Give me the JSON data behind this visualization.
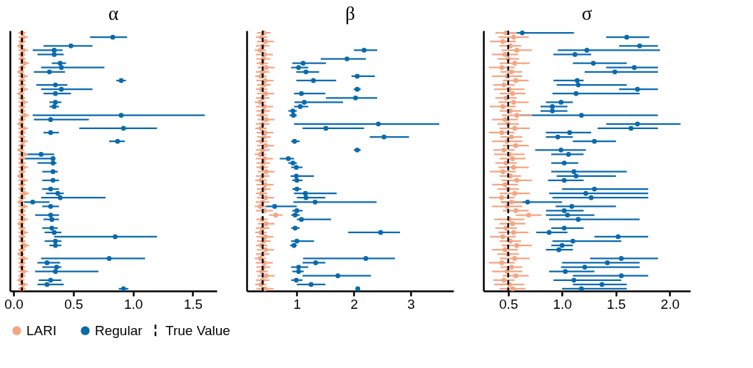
{
  "chart_data": [
    {
      "type": "scatter",
      "title": "α",
      "orientation": "horizontal",
      "tick_labels": "x",
      "legend": "bottom",
      "grid": false,
      "categories": [
        null,
        null,
        null,
        null,
        null,
        null,
        null,
        null,
        null,
        null,
        null,
        null,
        null,
        null,
        null,
        null,
        null,
        null,
        null,
        null,
        null,
        null,
        null,
        null,
        null,
        null,
        null,
        null,
        null,
        null,
        null,
        null,
        null,
        null,
        null,
        null,
        null,
        null,
        null,
        null,
        null,
        null,
        null,
        null,
        null,
        null,
        null,
        null,
        null,
        null,
        null,
        null,
        null,
        null,
        null,
        null,
        null,
        null,
        null,
        null
      ],
      "xlim": [
        -0.03,
        1.7
      ],
      "xticks": [
        {
          "value": 0,
          "label": "0.0"
        },
        0.5,
        {
          "value": 1,
          "label": "1.0"
        },
        1.5
      ],
      "series": [
        {
          "name": "LARI",
          "color": "#f4a582",
          "values": [
            0.07,
            0.08,
            0.07,
            0.06,
            0.08,
            0.07,
            0.07,
            0.09,
            0.07,
            0.06,
            0.08,
            0.07,
            0.07,
            0.08,
            0.06,
            0.07,
            0.08,
            0.07,
            0.07,
            0.09,
            0.07,
            0.06,
            0.08,
            0.07,
            0.07,
            0.08,
            0.07,
            0.06,
            0.08,
            0.07,
            0.07,
            0.08,
            0.07,
            0.06,
            0.08,
            0.07,
            0.07,
            0.09,
            0.07,
            0.06,
            0.08,
            0.07,
            0.07,
            0.08,
            0.06,
            0.07,
            0.08,
            0.07,
            0.07,
            0.09,
            0.07,
            0.06,
            0.08,
            0.07,
            0.07,
            0.08,
            0.07,
            0.06,
            0.08,
            0.07
          ],
          "errors": [
            0.03,
            0.04,
            0.03,
            0.03,
            0.04,
            0.03,
            0.03,
            0.04,
            0.03,
            0.03,
            0.04,
            0.03,
            0.03,
            0.04,
            0.03,
            0.03,
            0.04,
            0.03,
            0.03,
            0.04,
            0.03,
            0.03,
            0.04,
            0.03,
            0.03,
            0.04,
            0.03,
            0.03,
            0.04,
            0.03,
            0.03,
            0.04,
            0.03,
            0.03,
            0.04,
            0.03,
            0.03,
            0.04,
            0.03,
            0.03,
            0.04,
            0.03,
            0.03,
            0.04,
            0.03,
            0.03,
            0.04,
            0.03,
            0.03,
            0.04,
            0.03,
            0.03,
            0.04,
            0.03,
            0.03,
            0.04,
            0.03,
            0.03,
            0.04,
            0.03
          ]
        },
        {
          "name": "Regular",
          "color": "#0a6aad",
          "values": [
            null,
            0.83,
            null,
            0.48,
            0.34,
            0.34,
            null,
            0.39,
            0.4,
            0.3,
            null,
            0.9,
            0.35,
            0.4,
            0.35,
            null,
            0.35,
            0.34,
            null,
            0.9,
            0.31,
            null,
            0.92,
            0.31,
            null,
            0.87,
            null,
            null,
            0.23,
            0.33,
            0.33,
            null,
            0.33,
            null,
            0.33,
            null,
            0.31,
            0.37,
            0.39,
            0.16,
            0.31,
            null,
            0.31,
            0.32,
            null,
            0.32,
            0.34,
            0.85,
            0.35,
            0.35,
            null,
            null,
            0.8,
            0.28,
            0.36,
            0.35,
            null,
            0.31,
            0.28,
            0.92
          ],
          "errors": [
            null,
            [
              0.64,
              0.95
            ],
            null,
            [
              0.25,
              0.66
            ],
            [
              0.16,
              0.41
            ],
            [
              0.2,
              0.42
            ],
            null,
            [
              0.32,
              0.44
            ],
            [
              0.23,
              0.76
            ],
            [
              0.17,
              0.43
            ],
            null,
            [
              0.86,
              0.94
            ],
            [
              0.19,
              0.45
            ],
            [
              0.23,
              0.66
            ],
            [
              0.25,
              0.48
            ],
            null,
            [
              0.3,
              0.4
            ],
            [
              0.3,
              0.38
            ],
            null,
            [
              0.16,
              1.6
            ],
            [
              0.17,
              0.63
            ],
            null,
            [
              0.55,
              1.2
            ],
            [
              0.25,
              0.38
            ],
            null,
            [
              0.8,
              0.93
            ],
            null,
            null,
            [
              0.08,
              0.34
            ],
            [
              0.08,
              0.35
            ],
            [
              0.2,
              0.36
            ],
            null,
            [
              0.24,
              0.37
            ],
            null,
            [
              0.24,
              0.38
            ],
            null,
            [
              0.24,
              0.38
            ],
            [
              0.27,
              0.42
            ],
            [
              0.23,
              0.77
            ],
            [
              0.08,
              0.3
            ],
            [
              0.24,
              0.38
            ],
            null,
            [
              0.18,
              0.38
            ],
            [
              0.25,
              0.38
            ],
            null,
            [
              0.24,
              0.37
            ],
            [
              0.26,
              0.4
            ],
            [
              0.34,
              1.2
            ],
            [
              0.26,
              0.4
            ],
            [
              0.3,
              0.4
            ],
            null,
            null,
            [
              0.23,
              1.1
            ],
            [
              0.2,
              0.39
            ],
            [
              0.24,
              0.4
            ],
            [
              0.18,
              0.71
            ],
            null,
            [
              0.21,
              0.4
            ],
            [
              0.2,
              0.42
            ],
            [
              0.88,
              0.96
            ]
          ]
        }
      ],
      "ref_lines": [
        {
          "axis": "x",
          "value": 0.07,
          "label": "True Value",
          "color": "#000000",
          "line_style": "dashed"
        }
      ]
    },
    {
      "type": "scatter",
      "title": "β",
      "orientation": "horizontal",
      "tick_labels": "x",
      "legend": "bottom",
      "grid": false,
      "categories": [
        null,
        null,
        null,
        null,
        null,
        null,
        null,
        null,
        null,
        null,
        null,
        null,
        null,
        null,
        null,
        null,
        null,
        null,
        null,
        null,
        null,
        null,
        null,
        null,
        null,
        null,
        null,
        null,
        null,
        null,
        null,
        null,
        null,
        null,
        null,
        null,
        null,
        null,
        null,
        null,
        null,
        null,
        null,
        null,
        null,
        null,
        null,
        null,
        null,
        null,
        null,
        null,
        null,
        null,
        null,
        null,
        null,
        null,
        null,
        null
      ],
      "xlim": [
        0.12,
        3.75
      ],
      "xticks": [
        1,
        2,
        3
      ],
      "series": [
        {
          "name": "LARI",
          "color": "#f4a582",
          "values": [
            0.42,
            0.38,
            0.45,
            0.4,
            0.36,
            0.43,
            0.41,
            0.39,
            0.46,
            0.4,
            0.37,
            0.44,
            0.42,
            0.38,
            0.45,
            0.4,
            0.36,
            0.43,
            0.41,
            0.39,
            0.46,
            0.4,
            0.37,
            0.44,
            0.42,
            0.38,
            0.45,
            0.4,
            0.36,
            0.43,
            0.41,
            0.39,
            0.46,
            0.4,
            0.37,
            0.44,
            0.42,
            0.38,
            0.45,
            0.4,
            0.36,
            0.43,
            0.63,
            0.39,
            0.46,
            0.4,
            0.37,
            0.44,
            0.42,
            0.38,
            0.45,
            0.4,
            0.36,
            0.43,
            0.41,
            0.39,
            0.46,
            0.4,
            0.37,
            0.44
          ],
          "errors": [
            0.12,
            0.1,
            0.15,
            0.12,
            0.1,
            0.15,
            0.12,
            0.1,
            0.15,
            0.12,
            0.1,
            0.15,
            0.12,
            0.1,
            0.15,
            0.12,
            0.1,
            0.15,
            0.12,
            0.1,
            0.15,
            0.12,
            0.1,
            0.15,
            0.12,
            0.1,
            0.15,
            0.12,
            0.1,
            0.15,
            0.12,
            0.1,
            0.15,
            0.12,
            0.1,
            0.15,
            0.12,
            0.1,
            0.15,
            0.12,
            0.1,
            0.15,
            0.12,
            0.1,
            0.15,
            0.12,
            0.1,
            0.15,
            0.12,
            0.1,
            0.15,
            0.12,
            0.1,
            0.15,
            0.12,
            0.1,
            0.15,
            0.12,
            0.1,
            0.15
          ]
        },
        {
          "name": "Regular",
          "color": "#0a6aad",
          "values": [
            null,
            null,
            null,
            null,
            2.18,
            null,
            1.88,
            1.11,
            1.03,
            1.16,
            2.06,
            1.29,
            null,
            2.06,
            1.08,
            2.03,
            1.13,
            1.06,
            0.93,
            0.94,
            null,
            2.43,
            1.51,
            null,
            2.53,
            0.96,
            null,
            2.06,
            null,
            0.85,
            0.93,
            0.99,
            null,
            0.99,
            1.0,
            null,
            1.0,
            1.15,
            1.16,
            1.32,
            0.61,
            1.0,
            0.97,
            1.08,
            null,
            0.97,
            2.47,
            null,
            1.0,
            0.95,
            null,
            null,
            2.21,
            1.33,
            1.03,
            1.03,
            1.72,
            0.99,
            1.25,
            2.07
          ],
          "errors": [
            null,
            null,
            null,
            null,
            [
              2.0,
              2.41
            ],
            null,
            [
              1.42,
              2.21
            ],
            [
              0.92,
              1.51
            ],
            [
              0.9,
              1.2
            ],
            [
              0.99,
              1.39
            ],
            [
              1.96,
              2.37
            ],
            [
              0.99,
              1.69
            ],
            null,
            [
              2.0,
              2.12
            ],
            [
              0.95,
              1.5
            ],
            [
              1.51,
              2.41
            ],
            [
              0.96,
              1.81
            ],
            [
              0.95,
              1.2
            ],
            [
              0.85,
              1.0
            ],
            [
              0.87,
              1.0
            ],
            null,
            [
              0.95,
              3.5
            ],
            [
              1.1,
              2.18
            ],
            null,
            [
              2.28,
              2.97
            ],
            [
              0.9,
              1.05
            ],
            null,
            [
              2.0,
              2.12
            ],
            null,
            [
              0.7,
              0.95
            ],
            [
              0.85,
              1.0
            ],
            [
              0.9,
              1.1
            ],
            null,
            [
              0.89,
              1.3
            ],
            [
              0.92,
              1.1
            ],
            null,
            [
              0.92,
              1.08
            ],
            [
              0.95,
              1.7
            ],
            [
              1.0,
              1.5
            ],
            [
              0.94,
              2.4
            ],
            [
              0.45,
              1.0
            ],
            [
              0.92,
              1.1
            ],
            [
              0.9,
              1.05
            ],
            [
              1.0,
              1.6
            ],
            null,
            [
              0.9,
              1.05
            ],
            [
              1.9,
              2.81
            ],
            null,
            [
              0.9,
              1.3
            ],
            [
              0.88,
              1.0
            ],
            null,
            null,
            [
              1.11,
              2.72
            ],
            [
              1.1,
              1.5
            ],
            [
              0.9,
              1.2
            ],
            [
              0.92,
              1.12
            ],
            [
              1.1,
              2.3
            ],
            [
              0.9,
              1.1
            ],
            [
              1.0,
              1.5
            ],
            [
              2.03,
              2.11
            ]
          ]
        }
      ],
      "ref_lines": [
        {
          "axis": "x",
          "value": 0.4,
          "color": "#000000",
          "line_style": "dashed"
        }
      ]
    },
    {
      "type": "scatter",
      "title": "σ",
      "orientation": "horizontal",
      "tick_labels": "x",
      "legend": "bottom",
      "grid": false,
      "categories": [
        null,
        null,
        null,
        null,
        null,
        null,
        null,
        null,
        null,
        null,
        null,
        null,
        null,
        null,
        null,
        null,
        null,
        null,
        null,
        null,
        null,
        null,
        null,
        null,
        null,
        null,
        null,
        null,
        null,
        null,
        null,
        null,
        null,
        null,
        null,
        null,
        null,
        null,
        null,
        null,
        null,
        null,
        null,
        null,
        null,
        null,
        null,
        null,
        null,
        null,
        null,
        null,
        null,
        null,
        null,
        null,
        null,
        null,
        null,
        null
      ],
      "xlim": [
        0.27,
        2.19
      ],
      "xticks": [
        0.5,
        {
          "value": 1,
          "label": "1.0"
        },
        1.5,
        {
          "value": 2,
          "label": "2.0"
        }
      ],
      "series": [
        {
          "name": "LARI",
          "color": "#f4a582",
          "values": [
            0.48,
            0.55,
            0.45,
            0.52,
            0.58,
            0.47,
            0.5,
            0.56,
            0.44,
            0.53,
            0.49,
            0.57,
            0.46,
            0.51,
            0.54,
            0.48,
            0.55,
            0.45,
            0.52,
            0.58,
            0.47,
            0.5,
            0.56,
            0.44,
            0.53,
            0.49,
            0.57,
            0.46,
            0.51,
            0.54,
            0.48,
            0.55,
            0.45,
            0.52,
            0.58,
            0.47,
            0.5,
            0.56,
            0.44,
            0.53,
            0.49,
            0.57,
            0.69,
            0.51,
            0.54,
            0.48,
            0.55,
            0.45,
            0.52,
            0.58,
            0.47,
            0.5,
            0.56,
            0.44,
            0.53,
            0.49,
            0.57,
            0.46,
            0.51,
            0.54
          ],
          "errors": [
            0.1,
            0.14,
            0.12,
            0.1,
            0.14,
            0.12,
            0.1,
            0.14,
            0.12,
            0.1,
            0.14,
            0.12,
            0.1,
            0.14,
            0.12,
            0.1,
            0.14,
            0.12,
            0.1,
            0.14,
            0.12,
            0.1,
            0.14,
            0.12,
            0.1,
            0.14,
            0.12,
            0.1,
            0.14,
            0.12,
            0.1,
            0.14,
            0.12,
            0.1,
            0.14,
            0.12,
            0.1,
            0.14,
            0.12,
            0.1,
            0.14,
            0.12,
            0.12,
            0.14,
            0.12,
            0.1,
            0.14,
            0.12,
            0.1,
            0.14,
            0.12,
            0.1,
            0.14,
            0.12,
            0.1,
            0.14,
            0.12,
            0.1,
            0.14,
            0.12
          ]
        },
        {
          "name": "Regular",
          "color": "#0a6aad",
          "values": [
            0.63,
            1.6,
            null,
            1.72,
            1.23,
            1.12,
            null,
            1.29,
            1.67,
            1.49,
            null,
            1.14,
            1.15,
            1.7,
            1.13,
            null,
            0.99,
            0.91,
            0.91,
            1.18,
            null,
            1.7,
            1.64,
            1.07,
            0.96,
            1.3,
            null,
            0.99,
            1.06,
            null,
            1.02,
            null,
            1.11,
            1.13,
            1.02,
            null,
            1.3,
            1.22,
            1.27,
            0.68,
            1.09,
            1.02,
            1.05,
            1.15,
            null,
            1.02,
            0.88,
            1.52,
            1.1,
            1.0,
            0.97,
            null,
            1.55,
            1.42,
            1.21,
            1.03,
            1.55,
            1.11,
            1.37,
            1.18
          ],
          "errors": [
            [
              0.45,
              1.11
            ],
            [
              1.41,
              1.81
            ],
            null,
            [
              1.53,
              1.89
            ],
            [
              0.96,
              1.91
            ],
            [
              0.92,
              1.27
            ],
            null,
            [
              1.1,
              1.6
            ],
            [
              1.41,
              1.89
            ],
            [
              1.21,
              1.89
            ],
            null,
            [
              0.92,
              1.2
            ],
            [
              0.95,
              1.6
            ],
            [
              1.53,
              1.89
            ],
            [
              0.91,
              1.72
            ],
            null,
            [
              0.85,
              1.1
            ],
            [
              0.8,
              1.05
            ],
            [
              0.8,
              1.05
            ],
            [
              0.61,
              1.89
            ],
            null,
            [
              1.41,
              2.1
            ],
            [
              1.33,
              1.89
            ],
            [
              0.85,
              1.27
            ],
            [
              0.85,
              1.1
            ],
            [
              1.1,
              1.5
            ],
            null,
            [
              0.75,
              1.22
            ],
            [
              0.9,
              1.2
            ],
            null,
            [
              0.9,
              1.15
            ],
            null,
            [
              0.9,
              1.6
            ],
            [
              0.95,
              1.5
            ],
            [
              0.87,
              1.2
            ],
            null,
            [
              1.0,
              1.8
            ],
            [
              0.88,
              1.8
            ],
            [
              0.91,
              1.8
            ],
            [
              0.44,
              1.0
            ],
            [
              0.94,
              1.5
            ],
            [
              0.85,
              1.2
            ],
            [
              0.85,
              1.3
            ],
            [
              0.88,
              1.72
            ],
            null,
            [
              0.9,
              1.2
            ],
            [
              0.76,
              1.05
            ],
            [
              1.3,
              1.8
            ],
            [
              0.91,
              1.55
            ],
            [
              0.9,
              1.1
            ],
            [
              0.85,
              1.1
            ],
            null,
            [
              1.26,
              1.89
            ],
            [
              1.0,
              1.72
            ],
            [
              0.99,
              1.72
            ],
            [
              0.88,
              1.3
            ],
            [
              1.1,
              1.8
            ],
            [
              0.92,
              1.55
            ],
            [
              1.1,
              1.6
            ],
            [
              1.0,
              1.6
            ]
          ]
        }
      ],
      "ref_lines": [
        {
          "axis": "x",
          "value": 0.5,
          "color": "#000000",
          "line_style": "dashed"
        }
      ]
    }
  ]
}
